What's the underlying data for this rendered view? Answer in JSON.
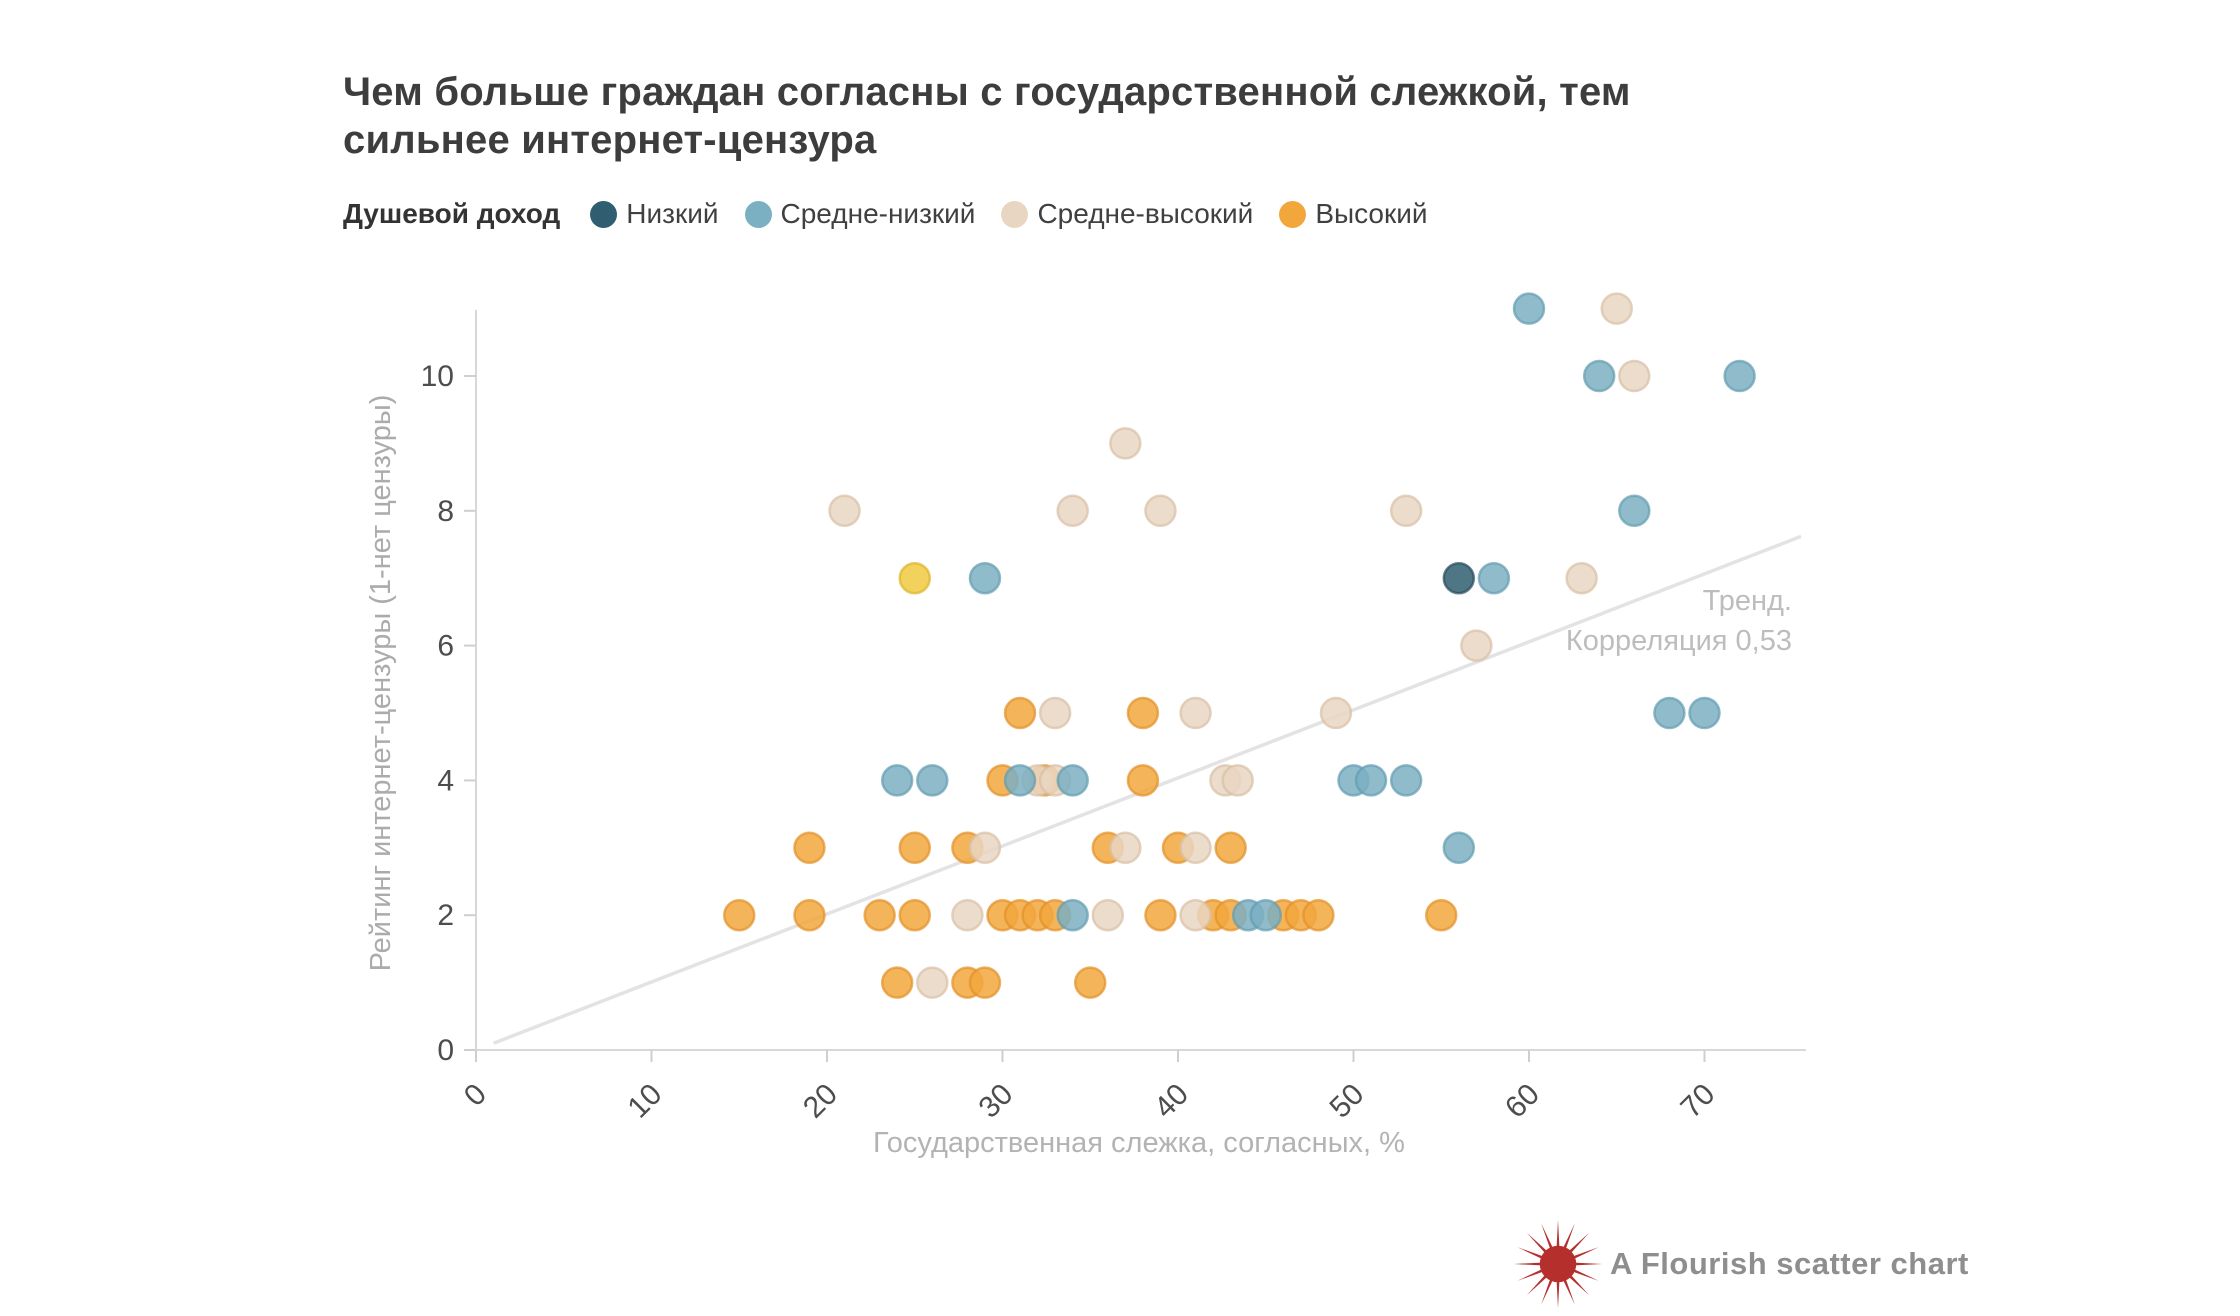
{
  "header": {
    "title_line1": "Чем больше граждан согласны с государственной слежкой, тем",
    "title_line2": "сильнее интернет-цензура"
  },
  "legend": {
    "title": "Душевой доход"
  },
  "footer": {
    "credit": "A Flourish scatter chart",
    "logo_color": "#b5302c"
  },
  "chart_data": {
    "type": "scatter",
    "title": "Чем больше граждан согласны с государственной слежкой, тем сильнее интернет-цензура",
    "x_axis": {
      "label": "Государственная слежка, согласных, %",
      "ticks": [
        0,
        10,
        20,
        30,
        40,
        50,
        60,
        70
      ],
      "range": [
        0,
        75.7
      ],
      "grid": false
    },
    "y_axis": {
      "label": "Рейтинг интернет-цензуры (1-нет цензуры)",
      "ticks": [
        0,
        2,
        4,
        6,
        8,
        10
      ],
      "range": [
        0,
        11.05
      ],
      "grid": false
    },
    "trend": {
      "label_line1": "Тренд.",
      "label_line2": "Корреляция 0,53",
      "correlation": "0,53",
      "from": {
        "x": 1,
        "y": 0.1
      },
      "to": {
        "x": 75.5,
        "y": 7.62
      },
      "color": "#e3e3e3"
    },
    "groups": [
      {
        "id": "low",
        "label": "Низкий",
        "color": "#2f5e70",
        "stroke": "#264c5b"
      },
      {
        "id": "mid_low",
        "label": "Средне-низкий",
        "color": "#7bafc2",
        "stroke": "#639cb1"
      },
      {
        "id": "mid_high",
        "label": "Средне-высокий",
        "color": "#e9d6c2",
        "stroke": "#d8bfa5"
      },
      {
        "id": "high",
        "label": "Высокий",
        "color": "#f2a73d",
        "stroke": "#e29026"
      }
    ],
    "highlight": {
      "id": "highlight",
      "color": "#f0c93f",
      "stroke": "#ddb32a"
    },
    "points": [
      {
        "x": 15,
        "y": 2,
        "g": "high"
      },
      {
        "x": 19,
        "y": 2,
        "g": "high"
      },
      {
        "x": 23,
        "y": 2,
        "g": "high"
      },
      {
        "x": 25,
        "y": 2,
        "g": "high"
      },
      {
        "x": 30,
        "y": 2,
        "g": "high"
      },
      {
        "x": 31,
        "y": 2,
        "g": "high"
      },
      {
        "x": 32,
        "y": 2,
        "g": "high"
      },
      {
        "x": 33,
        "y": 2,
        "g": "high"
      },
      {
        "x": 39,
        "y": 2,
        "g": "high"
      },
      {
        "x": 42,
        "y": 2,
        "g": "high"
      },
      {
        "x": 43,
        "y": 2,
        "g": "high"
      },
      {
        "x": 46,
        "y": 2,
        "g": "high"
      },
      {
        "x": 47,
        "y": 2,
        "g": "high"
      },
      {
        "x": 48,
        "y": 2,
        "g": "high"
      },
      {
        "x": 55,
        "y": 2,
        "g": "high"
      },
      {
        "x": 24,
        "y": 1,
        "g": "high"
      },
      {
        "x": 28,
        "y": 1,
        "g": "high"
      },
      {
        "x": 29,
        "y": 1,
        "g": "high"
      },
      {
        "x": 35,
        "y": 1,
        "g": "high"
      },
      {
        "x": 19,
        "y": 3,
        "g": "high"
      },
      {
        "x": 25,
        "y": 3,
        "g": "high"
      },
      {
        "x": 28,
        "y": 3,
        "g": "high"
      },
      {
        "x": 36,
        "y": 3,
        "g": "high"
      },
      {
        "x": 40,
        "y": 3,
        "g": "high"
      },
      {
        "x": 43,
        "y": 3,
        "g": "high"
      },
      {
        "x": 30,
        "y": 4,
        "g": "high"
      },
      {
        "x": 32.4,
        "y": 4,
        "g": "high"
      },
      {
        "x": 38,
        "y": 4,
        "g": "high"
      },
      {
        "x": 31,
        "y": 5,
        "g": "high"
      },
      {
        "x": 38,
        "y": 5,
        "g": "high"
      },
      {
        "x": 25,
        "y": 7,
        "g": "highlight"
      },
      {
        "x": 26,
        "y": 1,
        "g": "mid_high"
      },
      {
        "x": 28,
        "y": 2,
        "g": "mid_high"
      },
      {
        "x": 36,
        "y": 2,
        "g": "mid_high"
      },
      {
        "x": 41,
        "y": 2,
        "g": "mid_high"
      },
      {
        "x": 29,
        "y": 3,
        "g": "mid_high"
      },
      {
        "x": 37,
        "y": 3,
        "g": "mid_high"
      },
      {
        "x": 41,
        "y": 3,
        "g": "mid_high"
      },
      {
        "x": 32,
        "y": 4,
        "g": "mid_high"
      },
      {
        "x": 33,
        "y": 4,
        "g": "mid_high"
      },
      {
        "x": 42.7,
        "y": 4,
        "g": "mid_high"
      },
      {
        "x": 43.4,
        "y": 4,
        "g": "mid_high"
      },
      {
        "x": 33,
        "y": 5,
        "g": "mid_high"
      },
      {
        "x": 41,
        "y": 5,
        "g": "mid_high"
      },
      {
        "x": 49,
        "y": 5,
        "g": "mid_high"
      },
      {
        "x": 57,
        "y": 6,
        "g": "mid_high"
      },
      {
        "x": 63,
        "y": 7,
        "g": "mid_high"
      },
      {
        "x": 21,
        "y": 8,
        "g": "mid_high"
      },
      {
        "x": 34,
        "y": 8,
        "g": "mid_high"
      },
      {
        "x": 39,
        "y": 8,
        "g": "mid_high"
      },
      {
        "x": 53,
        "y": 8,
        "g": "mid_high"
      },
      {
        "x": 37,
        "y": 9,
        "g": "mid_high"
      },
      {
        "x": 66,
        "y": 10,
        "g": "mid_high"
      },
      {
        "x": 65,
        "y": 11,
        "g": "mid_high"
      },
      {
        "x": 34,
        "y": 2,
        "g": "mid_low"
      },
      {
        "x": 44,
        "y": 2,
        "g": "mid_low"
      },
      {
        "x": 45,
        "y": 2,
        "g": "mid_low"
      },
      {
        "x": 56,
        "y": 3,
        "g": "mid_low"
      },
      {
        "x": 24,
        "y": 4,
        "g": "mid_low"
      },
      {
        "x": 26,
        "y": 4,
        "g": "mid_low"
      },
      {
        "x": 31,
        "y": 4,
        "g": "mid_low"
      },
      {
        "x": 34,
        "y": 4,
        "g": "mid_low"
      },
      {
        "x": 50,
        "y": 4,
        "g": "mid_low"
      },
      {
        "x": 51,
        "y": 4,
        "g": "mid_low"
      },
      {
        "x": 53,
        "y": 4,
        "g": "mid_low"
      },
      {
        "x": 68,
        "y": 5,
        "g": "mid_low"
      },
      {
        "x": 70,
        "y": 5,
        "g": "mid_low"
      },
      {
        "x": 29,
        "y": 7,
        "g": "mid_low"
      },
      {
        "x": 58,
        "y": 7,
        "g": "mid_low"
      },
      {
        "x": 66,
        "y": 8,
        "g": "mid_low"
      },
      {
        "x": 64,
        "y": 10,
        "g": "mid_low"
      },
      {
        "x": 72,
        "y": 10,
        "g": "mid_low"
      },
      {
        "x": 60,
        "y": 11,
        "g": "mid_low"
      },
      {
        "x": 56,
        "y": 7,
        "g": "low"
      }
    ]
  }
}
